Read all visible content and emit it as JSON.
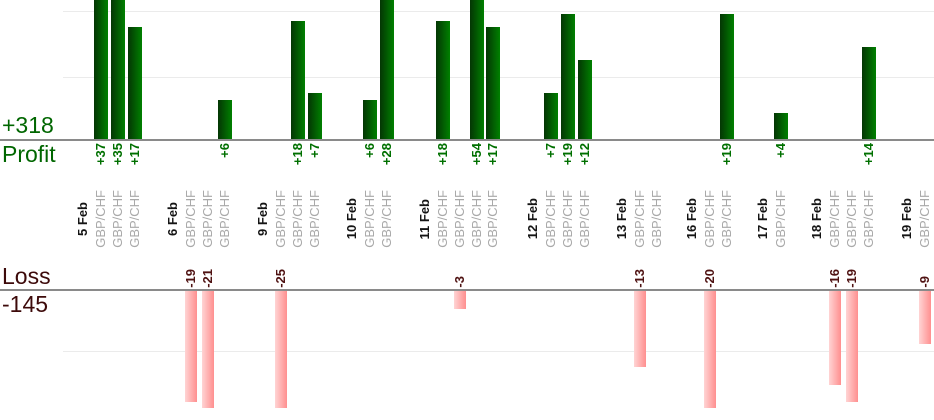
{
  "left_axis": {
    "profit_total": "+318",
    "profit_label": "Profit",
    "loss_label": "Loss",
    "loss_total": "-145"
  },
  "colors": {
    "profit_text": "#006600",
    "loss_text": "#3d0a0a",
    "profit_value_text": "#007000",
    "loss_value_text": "#4f1212",
    "bar_green_start": "#043604",
    "bar_green_end": "#008000",
    "bar_pink_start": "#ffd4d4",
    "bar_pink_end": "#ff8f8f",
    "date_text": "#141414",
    "symbol_text": "#a9a9a9",
    "axis_line": "#8a8a8a",
    "gridline": "#ebebeb"
  },
  "chart_data": {
    "type": "bar",
    "title": "",
    "description": "Daily trade profit (green, above upper axis) and loss (pink, below lower axis) per GBP/CHF trade",
    "profit_total": 318,
    "loss_total": -145,
    "profit_axis_label": "Profit",
    "loss_axis_label": "Loss",
    "profit_visible_range": [
      0,
      21
    ],
    "loss_visible_range": [
      0,
      -20
    ],
    "grid": true,
    "legend_position": "none",
    "groups": [
      {
        "date": "5 Feb",
        "trades": [
          {
            "symbol": "GBP/CHF",
            "value": 37
          },
          {
            "symbol": "GBP/CHF",
            "value": 35
          },
          {
            "symbol": "GBP/CHF",
            "value": 17
          }
        ]
      },
      {
        "date": "6 Feb",
        "trades": [
          {
            "symbol": "GBP/CHF",
            "value": -19
          },
          {
            "symbol": "GBP/CHF",
            "value": -21
          },
          {
            "symbol": "GBP/CHF",
            "value": 6
          }
        ]
      },
      {
        "date": "9 Feb",
        "trades": [
          {
            "symbol": "GBP/CHF",
            "value": -25
          },
          {
            "symbol": "GBP/CHF",
            "value": 18
          },
          {
            "symbol": "GBP/CHF",
            "value": 7
          }
        ]
      },
      {
        "date": "10 Feb",
        "trades": [
          {
            "symbol": "GBP/CHF",
            "value": 6
          },
          {
            "symbol": "GBP/CHF",
            "value": 28
          }
        ]
      },
      {
        "date": "11 Feb",
        "trades": [
          {
            "symbol": "GBP/CHF",
            "value": 18
          },
          {
            "symbol": "GBP/CHF",
            "value": -3
          },
          {
            "symbol": "GBP/CHF",
            "value": 54
          },
          {
            "symbol": "GBP/CHF",
            "value": 17
          }
        ]
      },
      {
        "date": "12 Feb",
        "trades": [
          {
            "symbol": "GBP/CHF",
            "value": 7
          },
          {
            "symbol": "GBP/CHF",
            "value": 19
          },
          {
            "symbol": "GBP/CHF",
            "value": 12
          }
        ]
      },
      {
        "date": "13 Feb",
        "trades": [
          {
            "symbol": "GBP/CHF",
            "value": -13
          },
          {
            "symbol": "GBP/CHF",
            "value": 0
          }
        ]
      },
      {
        "date": "16 Feb",
        "trades": [
          {
            "symbol": "GBP/CHF",
            "value": -20
          },
          {
            "symbol": "GBP/CHF",
            "value": 19
          }
        ]
      },
      {
        "date": "17 Feb",
        "trades": [
          {
            "symbol": "GBP/CHF",
            "value": 4
          }
        ]
      },
      {
        "date": "18 Feb",
        "trades": [
          {
            "symbol": "GBP/CHF",
            "value": -16
          },
          {
            "symbol": "GBP/CHF",
            "value": -19
          },
          {
            "symbol": "GBP/CHF",
            "value": 14
          }
        ]
      },
      {
        "date": "19 Feb",
        "trades": [
          {
            "symbol": "GBP/CHF",
            "value": -9
          }
        ]
      }
    ]
  }
}
